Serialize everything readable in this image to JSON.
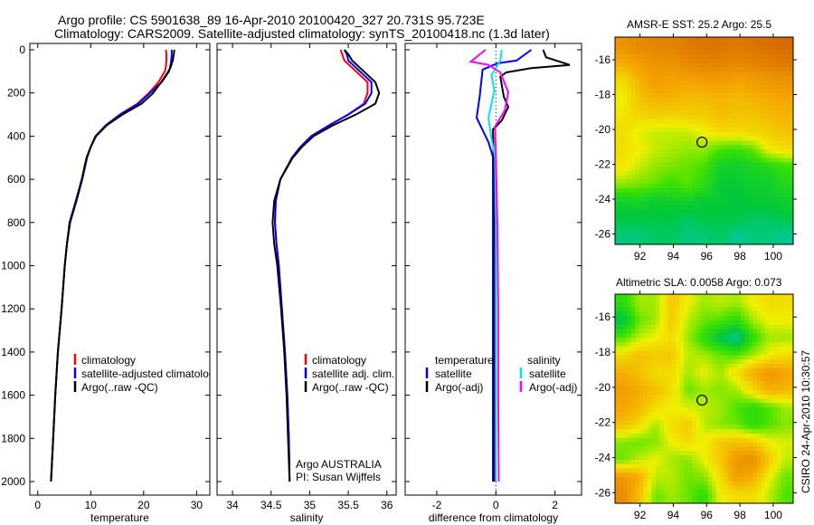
{
  "title": {
    "line1": "Argo profile: CS 5901638_89 16-Apr-2010 20100420_327 20.731S 95.723E",
    "line2": "Climatology: CARS2009. Satellite-adjusted climatology: synTS_20100418.nc (1.3d later)"
  },
  "footer_stamp": "CSIRO 24-Apr-2010 10:30:57",
  "colors": {
    "climatology": "#ff0000",
    "satellite": "#0000ff",
    "argo": "#000000",
    "sat_salinity": "#00e5ee",
    "argo_salinity": "#ff00ff"
  },
  "chart_data": [
    {
      "type": "line",
      "id": "temperature",
      "xlabel": "temperature",
      "xlim": [
        -1.5,
        32.5
      ],
      "ylim": [
        2000,
        0
      ],
      "yticks": [
        "0",
        "200",
        "400",
        "600",
        "800",
        "1000",
        "1200",
        "1400",
        "1600",
        "1800",
        "2000"
      ],
      "xticks": [
        "0",
        "10",
        "20",
        "30"
      ],
      "legend": [
        "climatology",
        "satellite-adjusted climatology",
        "Argo(..raw -QC)"
      ],
      "depth": [
        0,
        20,
        50,
        80,
        100,
        150,
        200,
        250,
        300,
        350,
        400,
        450,
        500,
        600,
        700,
        800,
        900,
        1000,
        1200,
        1400,
        1600,
        1800,
        2000
      ],
      "series": [
        {
          "name": "climatology",
          "values": [
            24.2,
            24.3,
            24.3,
            24.2,
            24.0,
            22.8,
            21.0,
            18.8,
            15.5,
            12.8,
            10.9,
            10.0,
            9.3,
            8.4,
            7.3,
            6.1,
            5.5,
            5.1,
            4.5,
            3.8,
            3.3,
            2.9,
            2.5
          ]
        },
        {
          "name": "satellite-adjusted climatology",
          "values": [
            25.3,
            25.3,
            25.2,
            25.0,
            24.8,
            23.4,
            21.2,
            19.0,
            15.6,
            12.9,
            10.9,
            10.0,
            9.3,
            8.4,
            7.3,
            6.1,
            5.5,
            5.1,
            4.5,
            3.8,
            3.3,
            2.9,
            2.5
          ]
        },
        {
          "name": "Argo(..raw -QC)",
          "values": [
            25.8,
            25.7,
            25.5,
            25.1,
            24.7,
            23.3,
            21.8,
            19.6,
            16.0,
            13.0,
            11.0,
            10.0,
            9.2,
            8.3,
            7.2,
            6.0,
            5.5,
            5.1,
            4.5,
            3.8,
            3.3,
            2.9,
            2.5
          ]
        }
      ]
    },
    {
      "type": "line",
      "id": "salinity",
      "xlabel": "salinity",
      "xlim": [
        33.8,
        36.12
      ],
      "ylim": [
        2000,
        0
      ],
      "xticks": [
        "34",
        "34.5",
        "35",
        "35.5",
        "36"
      ],
      "legend": [
        "climatology",
        "satellite adj. clim.",
        "Argo(..raw -QC)"
      ],
      "annotation": [
        "Argo AUSTRALIA",
        "PI: Susan Wijffels"
      ],
      "depth": [
        0,
        20,
        50,
        100,
        150,
        200,
        250,
        300,
        350,
        400,
        450,
        500,
        600,
        700,
        800,
        900,
        1000,
        1200,
        1400,
        1600,
        1800,
        2000
      ],
      "series": [
        {
          "name": "climatology",
          "values": [
            35.4,
            35.42,
            35.45,
            35.6,
            35.75,
            35.75,
            35.7,
            35.5,
            35.25,
            35.02,
            34.88,
            34.77,
            34.62,
            34.56,
            34.55,
            34.57,
            34.6,
            34.64,
            34.68,
            34.71,
            34.73,
            34.74
          ]
        },
        {
          "name": "satellite adj. clim.",
          "values": [
            35.45,
            35.48,
            35.5,
            35.65,
            35.8,
            35.8,
            35.72,
            35.5,
            35.25,
            35.02,
            34.88,
            34.77,
            34.62,
            34.56,
            34.55,
            34.57,
            34.6,
            34.64,
            34.68,
            34.71,
            34.73,
            34.74
          ]
        },
        {
          "name": "Argo(..raw -QC)",
          "values": [
            35.45,
            35.5,
            35.55,
            35.7,
            35.85,
            35.9,
            35.85,
            35.6,
            35.3,
            35.05,
            34.9,
            34.78,
            34.62,
            34.54,
            34.52,
            34.54,
            34.58,
            34.63,
            34.67,
            34.7,
            34.72,
            34.74
          ]
        }
      ]
    },
    {
      "type": "line",
      "id": "difference",
      "xlabel": "difference from climatology",
      "xlim": [
        -3.07,
        2.9
      ],
      "ylim": [
        2000,
        0
      ],
      "xticks": [
        "-2",
        "0",
        "2"
      ],
      "legend_temperature": {
        "heading": "temperature",
        "items": [
          "satellite",
          "Argo(-adj)"
        ]
      },
      "legend_salinity": {
        "heading": "salinity",
        "items": [
          "satellite",
          "Argo(-adj)"
        ]
      },
      "series": [
        {
          "name": "temperature satellite",
          "depth": [
            0,
            50,
            63,
            92,
            218,
            315,
            428,
            495,
            800,
            1200,
            1600,
            2000
          ],
          "values": [
            1.2,
            0.7,
            0.05,
            -0.45,
            -0.55,
            -0.65,
            -0.25,
            -0.1,
            -0.1,
            -0.1,
            -0.1,
            -0.1
          ]
        },
        {
          "name": "temperature Argo(-adj)",
          "depth": [
            0,
            35,
            70,
            85,
            105,
            125,
            218,
            265,
            327,
            370,
            600,
            1000,
            1500,
            2000
          ],
          "values": [
            1.6,
            1.7,
            2.5,
            1.2,
            0.35,
            0.15,
            0.27,
            0.42,
            0.2,
            -0.1,
            -0.05,
            -0.05,
            -0.05,
            -0.05
          ]
        },
        {
          "name": "salinity satellite",
          "depth": [
            0,
            50,
            117,
            189,
            315,
            411,
            495,
            800,
            1200,
            1600,
            2000
          ],
          "values": [
            0.2,
            0.15,
            -0.15,
            -0.05,
            -0.25,
            -0.15,
            -0.03,
            0.0,
            0.0,
            0.0,
            0.0
          ]
        },
        {
          "name": "salinity Argo(-adj)",
          "depth": [
            0,
            55,
            70,
            105,
            197,
            281,
            356,
            495,
            800,
            1200,
            1600,
            2000
          ],
          "values": [
            -0.35,
            -0.85,
            -0.25,
            0.15,
            0.42,
            0.3,
            -0.03,
            0.0,
            0.05,
            0.08,
            0.08,
            0.1
          ]
        }
      ]
    },
    {
      "type": "heatmap",
      "id": "sst-map",
      "title": "AMSR-E SST: 25.2 Argo: 25.5",
      "xlim": [
        90.5,
        101.2
      ],
      "ylim": [
        -26.6,
        -14.7
      ],
      "xticks": [
        "92",
        "94",
        "96",
        "98",
        "100"
      ],
      "yticks": [
        "-16",
        "-18",
        "-20",
        "-22",
        "-24",
        "-26"
      ],
      "color_range": [
        23.8,
        28.0
      ],
      "marker": {
        "lon": 95.723,
        "lat": -20.731
      },
      "grid_lat_top_to_bottom": [
        -15,
        -16,
        -17,
        -18,
        -19,
        -20,
        -21,
        -22,
        -23,
        -24,
        -25,
        -26
      ],
      "grid_lon": [
        91,
        92,
        93,
        94,
        95,
        96,
        97,
        98,
        99,
        100,
        101
      ],
      "values": [
        [
          27.0,
          27.2,
          27.3,
          27.3,
          27.5,
          27.6,
          27.6,
          27.5,
          27.6,
          27.7,
          27.8
        ],
        [
          26.6,
          26.8,
          27.0,
          27.0,
          27.2,
          27.3,
          27.3,
          27.2,
          27.3,
          27.4,
          27.5
        ],
        [
          26.0,
          26.5,
          26.8,
          26.7,
          26.7,
          26.8,
          26.8,
          26.7,
          26.8,
          26.9,
          27.0
        ],
        [
          25.8,
          26.3,
          26.5,
          26.5,
          26.4,
          26.4,
          26.5,
          26.4,
          26.5,
          26.6,
          26.7
        ],
        [
          25.9,
          26.1,
          26.2,
          26.1,
          26.2,
          26.2,
          26.4,
          26.3,
          26.3,
          26.4,
          26.5
        ],
        [
          26.0,
          25.7,
          25.6,
          25.6,
          25.6,
          25.8,
          26.0,
          26.0,
          26.1,
          26.2,
          26.3
        ],
        [
          26.0,
          25.8,
          25.6,
          25.5,
          25.4,
          25.4,
          25.1,
          25.0,
          25.2,
          25.8,
          26.0
        ],
        [
          25.9,
          25.6,
          25.4,
          25.3,
          25.2,
          25.1,
          24.6,
          24.6,
          24.7,
          24.8,
          25.0
        ],
        [
          25.4,
          25.3,
          25.2,
          25.0,
          25.2,
          24.9,
          24.5,
          24.5,
          24.6,
          24.6,
          24.8
        ],
        [
          24.6,
          24.7,
          24.5,
          24.6,
          24.6,
          24.5,
          24.5,
          24.4,
          24.5,
          24.5,
          24.6
        ],
        [
          24.4,
          24.4,
          24.4,
          24.4,
          24.3,
          24.4,
          24.4,
          24.4,
          24.3,
          24.3,
          24.4
        ],
        [
          24.2,
          24.2,
          24.3,
          24.3,
          24.2,
          24.2,
          24.3,
          24.1,
          24.2,
          24.2,
          24.1
        ]
      ]
    },
    {
      "type": "heatmap",
      "id": "sla-map",
      "title": "Altimetric SLA: 0.0058 Argo: 0.073",
      "xlim": [
        90.5,
        101.2
      ],
      "ylim": [
        -26.6,
        -14.7
      ],
      "xticks": [
        "92",
        "94",
        "96",
        "98",
        "100"
      ],
      "yticks": [
        "-16",
        "-18",
        "-20",
        "-22",
        "-24",
        "-26"
      ],
      "color_range": [
        -0.1,
        0.28
      ],
      "marker": {
        "lon": 95.723,
        "lat": -20.731
      },
      "grid_lat_top_to_bottom": [
        -15,
        -16,
        -17,
        -18,
        -19,
        -20,
        -21,
        -22,
        -23,
        -24,
        -25,
        -26
      ],
      "grid_lon": [
        91,
        92,
        93,
        94,
        95,
        96,
        97,
        98,
        99,
        100,
        101
      ],
      "values": [
        [
          0.0,
          0.05,
          0.05,
          0.12,
          0.08,
          0.05,
          0.06,
          0.05,
          0.08,
          0.1,
          0.1
        ],
        [
          -0.05,
          0.03,
          0.05,
          0.12,
          0.06,
          0.03,
          0.02,
          0.0,
          0.05,
          0.08,
          0.08
        ],
        [
          0.02,
          0.06,
          0.08,
          0.1,
          0.05,
          0.0,
          -0.05,
          -0.08,
          0.0,
          0.05,
          0.05
        ],
        [
          0.1,
          0.13,
          0.12,
          0.12,
          0.06,
          0.05,
          0.03,
          0.02,
          0.05,
          0.08,
          0.1
        ],
        [
          0.15,
          0.13,
          0.1,
          0.1,
          0.05,
          0.08,
          0.05,
          0.1,
          0.15,
          0.18,
          0.16
        ],
        [
          0.17,
          0.15,
          0.13,
          0.1,
          0.03,
          0.05,
          0.04,
          0.05,
          0.1,
          0.15,
          0.14
        ],
        [
          0.16,
          0.14,
          0.1,
          0.08,
          0.07,
          0.06,
          0.05,
          0.02,
          0.0,
          0.02,
          0.05
        ],
        [
          0.13,
          0.1,
          0.05,
          0.1,
          0.12,
          0.06,
          0.04,
          0.03,
          0.0,
          0.02,
          0.04
        ],
        [
          0.04,
          0.03,
          0.04,
          0.08,
          0.1,
          0.08,
          0.12,
          0.13,
          0.12,
          0.08,
          0.07
        ],
        [
          0.03,
          0.06,
          0.08,
          0.05,
          0.04,
          0.08,
          0.12,
          0.18,
          0.2,
          0.12,
          0.06
        ],
        [
          0.18,
          0.15,
          0.06,
          0.06,
          0.03,
          0.04,
          0.1,
          0.17,
          0.15,
          0.08,
          0.03
        ],
        [
          0.2,
          0.13,
          0.03,
          0.05,
          0.03,
          0.0,
          0.08,
          0.1,
          0.1,
          0.06,
          0.02
        ]
      ]
    }
  ]
}
